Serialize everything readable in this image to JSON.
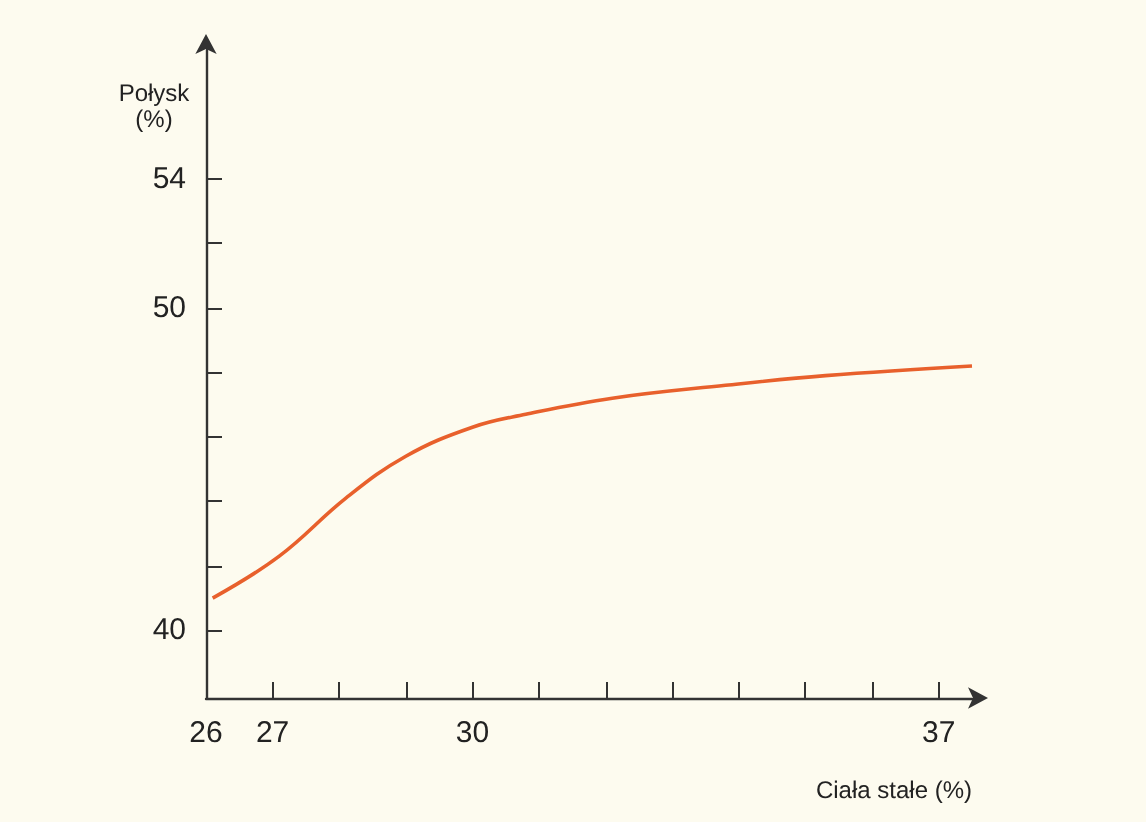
{
  "chart_data": {
    "type": "line",
    "xlabel": "Ciała stałe (%)",
    "ylabel": "Połysk (%)",
    "x": [
      26.1,
      27.1,
      28.1,
      29.0,
      30.0,
      30.8,
      32.1,
      33.8,
      35.3,
      37.5
    ],
    "series": [
      {
        "color": "#e8602c",
        "values": [
          41.0,
          42.3,
          44.1,
          45.4,
          46.3,
          46.7,
          47.2,
          47.6,
          47.9,
          48.2
        ]
      }
    ],
    "xlim": [
      26,
      37.5
    ],
    "ylim": [
      37.9,
      58
    ],
    "xticks": [
      26,
      27,
      {
        "value": 28,
        "label": null
      },
      {
        "value": 29,
        "label": null
      },
      30,
      {
        "value": 31,
        "label": null
      },
      {
        "value": 32,
        "label": null
      },
      {
        "value": 33,
        "label": null
      },
      {
        "value": 34,
        "label": null
      },
      {
        "value": 35,
        "label": null
      },
      {
        "value": 36,
        "label": null
      },
      37
    ],
    "yticks": [
      40,
      {
        "value": 42,
        "label": null
      },
      {
        "value": 44,
        "label": null
      },
      {
        "value": 46,
        "label": null
      },
      {
        "value": 48,
        "label": null
      },
      50,
      {
        "value": 52,
        "label": null
      },
      54
    ],
    "grid": false,
    "marker": "none",
    "line_style": "solid"
  }
}
